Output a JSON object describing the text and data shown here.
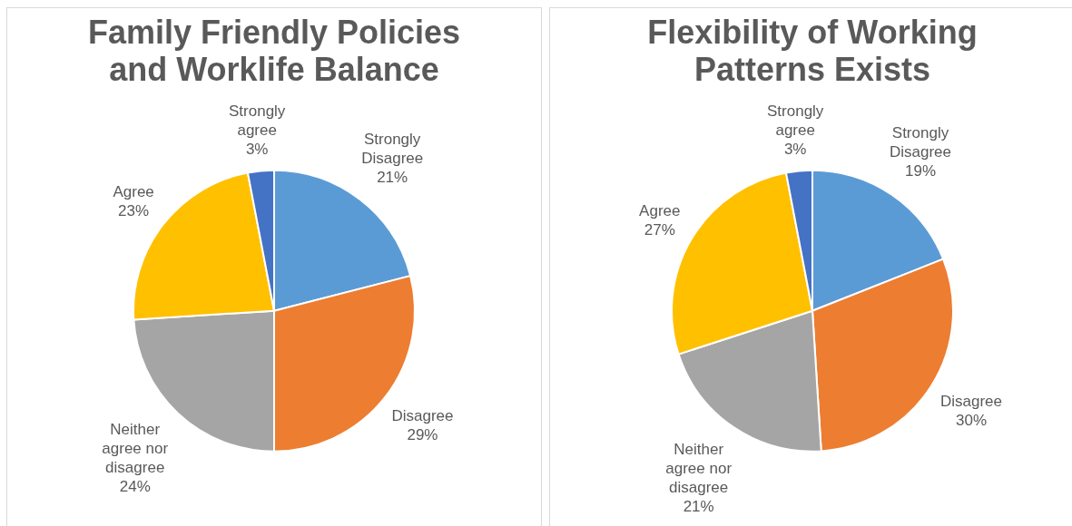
{
  "chart_data": [
    {
      "type": "pie",
      "title": "Family Friendly Policies and Worklife Balance",
      "categories": [
        "Strongly Disagree",
        "Disagree",
        "Neither agree nor disagree",
        "Agree",
        "Strongly agree"
      ],
      "values": [
        21,
        29,
        24,
        23,
        3
      ],
      "value_labels": [
        "21%",
        "29%",
        "24%",
        "23%",
        "3%"
      ],
      "colors": [
        "#5b9bd5",
        "#ed7d31",
        "#a5a5a5",
        "#ffc000",
        "#4472c4"
      ]
    },
    {
      "type": "pie",
      "title": "Flexibility of Working Patterns Exists",
      "categories": [
        "Strongly Disagree",
        "Disagree",
        "Neither agree nor disagree",
        "Agree",
        "Strongly agree"
      ],
      "values": [
        19,
        30,
        21,
        27,
        3
      ],
      "value_labels": [
        "19%",
        "30%",
        "21%",
        "27%",
        "3%"
      ],
      "colors": [
        "#5b9bd5",
        "#ed7d31",
        "#a5a5a5",
        "#ffc000",
        "#4472c4"
      ]
    }
  ]
}
